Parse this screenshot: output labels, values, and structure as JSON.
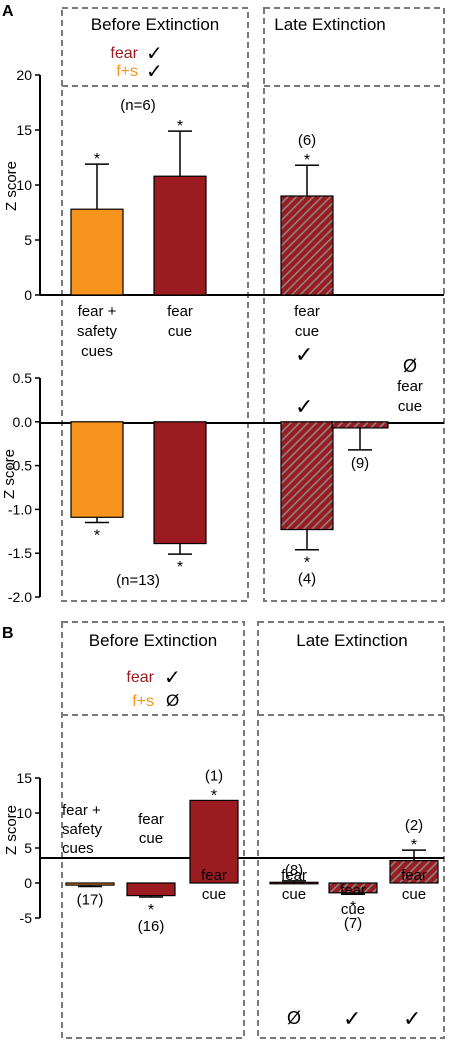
{
  "colors": {
    "fear": "#9b1c20",
    "fear_safety": "#f7941d",
    "hatch_stripe": "#8a8a8a",
    "box_border": "#7a7a7a"
  },
  "glyphs": {
    "check": "✓",
    "null_set": "Ø"
  },
  "panel_a": {
    "letter": "A",
    "box_titles": [
      "Before Extinction",
      "Late Extinction"
    ],
    "legend": [
      {
        "label": "fear",
        "color_key": "fear",
        "symbol": "check"
      },
      {
        "label": "f+s",
        "color_key": "fear_safety",
        "symbol": "check"
      }
    ],
    "late_markers": [
      "check",
      "null_set"
    ]
  },
  "panel_b": {
    "letter": "B",
    "box_titles": [
      "Before Extinction",
      "Late Extinction"
    ],
    "legend": [
      {
        "label": "fear",
        "color_key": "fear",
        "symbol": "check"
      },
      {
        "label": "f+s",
        "color_key": "fear_safety",
        "symbol": "null_set"
      }
    ],
    "late_markers": [
      "null_set",
      "check",
      "check"
    ]
  },
  "chart_data": [
    {
      "id": "A-top",
      "type": "bar",
      "ylabel": "Z score",
      "ylim": [
        0,
        20
      ],
      "yticks": [
        0,
        5,
        10,
        15,
        20
      ],
      "bars": [
        {
          "category": [
            "fear +",
            "safety",
            "cues"
          ],
          "value": 7.8,
          "error": 4.1,
          "style": "fear_safety",
          "star": true,
          "n": ""
        },
        {
          "category": [
            "fear",
            "cue"
          ],
          "value": 10.8,
          "error": 4.1,
          "style": "fear",
          "star": true,
          "n": ""
        },
        {
          "category": [
            "fear",
            "cue"
          ],
          "value": 9.0,
          "error": 2.8,
          "style": "fear_hatched",
          "star": true,
          "n": "(6)"
        }
      ],
      "group_n": "(n=6)"
    },
    {
      "id": "A-bottom",
      "type": "bar",
      "ylabel": "Z score",
      "ylim": [
        -2.0,
        0.5
      ],
      "yticks": [
        -2.0,
        -1.5,
        -1.0,
        -0.5,
        0.0,
        0.5
      ],
      "bars": [
        {
          "value": -1.09,
          "error": 0.06,
          "style": "fear_safety",
          "star": true,
          "n": ""
        },
        {
          "value": -1.39,
          "error": 0.12,
          "style": "fear",
          "star": true,
          "n": ""
        },
        {
          "value": -1.23,
          "error": 0.23,
          "style": "fear_hatched",
          "star": true,
          "n": "(4)"
        },
        {
          "category": [
            "fear",
            "cue"
          ],
          "value": -0.07,
          "error": 0.25,
          "style": "fear_hatched",
          "star": false,
          "n": "(9)"
        }
      ],
      "group_n": "(n=13)"
    },
    {
      "id": "B",
      "type": "bar",
      "ylabel": "Z score",
      "ylim": [
        -5,
        15
      ],
      "yticks": [
        -5,
        0,
        5,
        10,
        15
      ],
      "bars": [
        {
          "category": [
            "fear +",
            "safety",
            "cues"
          ],
          "value": -0.3,
          "error": 0.2,
          "style": "fear_safety",
          "star": false,
          "n": "(17)"
        },
        {
          "category": [
            "fear",
            "cue"
          ],
          "value": -1.8,
          "error": 0.2,
          "style": "fear",
          "star": true,
          "n": "(16)"
        },
        {
          "category": [
            "fear",
            "cue"
          ],
          "value": 11.8,
          "error": 0.0,
          "style": "fear",
          "star": true,
          "n": "(1)"
        },
        {
          "category": [
            "fear",
            "cue"
          ],
          "value": 0.1,
          "error": 0.2,
          "style": "fear_hatched",
          "star": false,
          "n": "(8)"
        },
        {
          "category": [
            "fear",
            "cue"
          ],
          "value": -1.4,
          "error": 0.2,
          "style": "fear_hatched",
          "star": true,
          "n": "(7)"
        },
        {
          "category": [
            "fear",
            "cue"
          ],
          "value": 3.2,
          "error": 1.5,
          "style": "fear_hatched",
          "star": true,
          "n": "(2)"
        }
      ]
    }
  ]
}
